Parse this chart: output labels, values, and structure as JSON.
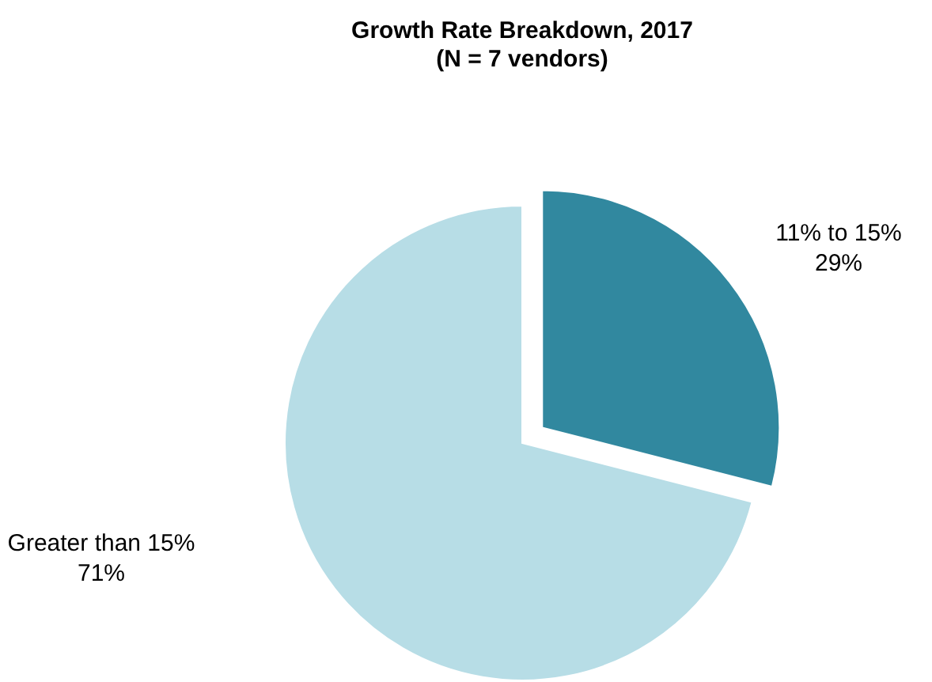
{
  "chart_data": {
    "type": "pie",
    "title": "Growth Rate Breakdown, 2017",
    "subtitle": "(N = 7 vendors)",
    "categories": [
      "11% to 15%",
      "Greater than 15%"
    ],
    "values": [
      29,
      71
    ],
    "colors": [
      "#31889f",
      "#b7dde6"
    ],
    "value_labels": [
      "29%",
      "71%"
    ]
  }
}
